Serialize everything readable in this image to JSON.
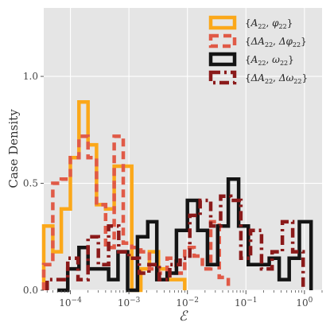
{
  "chart_data": {
    "type": "histogram-step",
    "xlabel": "ℰ",
    "ylabel": "Case Density",
    "xscale": "log",
    "xlim": [
      3.5e-05,
      2.0
    ],
    "ylim": [
      0.0,
      1.32
    ],
    "yticks": [
      {
        "value": 0.0,
        "label": "0.0"
      },
      {
        "value": 0.5,
        "label": "0.5"
      },
      {
        "value": 1.0,
        "label": "1.0"
      }
    ],
    "xticks": [
      {
        "value": 0.0001,
        "base": "10",
        "exp": "−4"
      },
      {
        "value": 0.001,
        "base": "10",
        "exp": "−3"
      },
      {
        "value": 0.01,
        "base": "10",
        "exp": "−2"
      },
      {
        "value": 0.1,
        "base": "10",
        "exp": "−1"
      },
      {
        "value": 1.0,
        "base": "10",
        "exp": "0"
      }
    ],
    "grid": true,
    "legend_placement": "top-right",
    "series": [
      {
        "label_parts": {
          "a": "A",
          "asub": "22",
          "b": "φ",
          "bsub": "22"
        },
        "color": "#fba81a",
        "dash": "",
        "edges": [
          3.5e-05,
          5e-05,
          7e-05,
          0.0001,
          0.00014,
          0.0002,
          0.00028,
          0.0004,
          0.00056,
          0.0008,
          0.00112,
          0.0016,
          0.00224,
          0.0032,
          0.0045,
          0.0064,
          0.009
        ],
        "values": [
          0.3,
          0.18,
          0.38,
          0.62,
          0.88,
          0.68,
          0.4,
          0.38,
          0.58,
          0.58,
          0.0,
          0.1,
          0.18,
          0.1,
          0.05,
          0.05
        ]
      },
      {
        "label_parts": {
          "a": "ΔA",
          "asub": "22",
          "b": "Δφ",
          "bsub": "22"
        },
        "color": "#e05a47",
        "dash": "10,6",
        "edges": [
          3.5e-05,
          5e-05,
          7e-05,
          0.0001,
          0.00014,
          0.0002,
          0.00028,
          0.0004,
          0.00056,
          0.0008,
          0.00112,
          0.0016,
          0.00224,
          0.0032,
          0.0045,
          0.0064,
          0.009,
          0.013,
          0.018,
          0.025,
          0.035,
          0.05
        ],
        "values": [
          0.12,
          0.5,
          0.52,
          0.62,
          0.72,
          0.62,
          0.4,
          0.2,
          0.72,
          0.22,
          0.2,
          0.18,
          0.1,
          0.08,
          0.15,
          0.08,
          0.2,
          0.16,
          0.1,
          0.32,
          0.06
        ]
      },
      {
        "label_parts": {
          "a": "A",
          "asub": "22",
          "b": "ω",
          "bsub": "22"
        },
        "color": "#141414",
        "dash": "",
        "edges": [
          6e-05,
          9e-05,
          0.00014,
          0.0002,
          0.0003,
          0.00045,
          0.00065,
          0.00095,
          0.0014,
          0.0021,
          0.003,
          0.0045,
          0.0065,
          0.01,
          0.015,
          0.022,
          0.033,
          0.05,
          0.075,
          0.11,
          0.165,
          0.25,
          0.37,
          0.55,
          0.82,
          1.3
        ],
        "values": [
          0.0,
          0.1,
          0.2,
          0.1,
          0.1,
          0.05,
          0.18,
          0.0,
          0.25,
          0.32,
          0.05,
          0.08,
          0.28,
          0.42,
          0.28,
          0.12,
          0.3,
          0.52,
          0.3,
          0.12,
          0.12,
          0.15,
          0.05,
          0.15,
          0.32
        ]
      },
      {
        "label_parts": {
          "a": "ΔA",
          "asub": "22",
          "b": "Δω",
          "bsub": "22"
        },
        "color": "#8b1a1a",
        "dash": "12,5,3,5",
        "edges": [
          4e-05,
          6e-05,
          9e-05,
          0.000135,
          0.0002,
          0.0003,
          0.00045,
          0.00067,
          0.001,
          0.0015,
          0.0022,
          0.0033,
          0.005,
          0.0075,
          0.011,
          0.0165,
          0.025,
          0.037,
          0.055,
          0.082,
          0.12,
          0.185,
          0.28,
          0.42,
          0.63,
          0.95
        ],
        "values": [
          0.05,
          0.05,
          0.15,
          0.05,
          0.25,
          0.12,
          0.3,
          0.18,
          0.15,
          0.08,
          0.12,
          0.05,
          0.12,
          0.15,
          0.35,
          0.42,
          0.3,
          0.44,
          0.42,
          0.15,
          0.28,
          0.1,
          0.18,
          0.32,
          0.18
        ]
      }
    ]
  }
}
